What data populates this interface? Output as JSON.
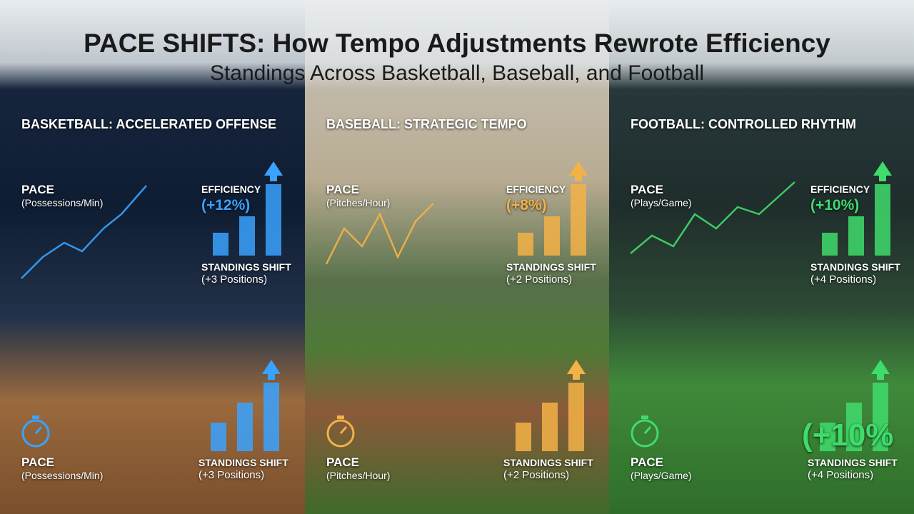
{
  "header": {
    "title": "PACE SHIFTS: How Tempo Adjustments Rewrote Efficiency",
    "subtitle": "Standings Across Basketball, Baseball, and Football"
  },
  "panels": [
    {
      "heading": "BASKETBALL: ACCELERATED OFFENSE",
      "pace_label": "PACE",
      "pace_unit": "(Possessions/Min)",
      "efficiency_label": "EFFICIENCY",
      "efficiency_value": "(+12%)",
      "standings_label": "STANDINGS SHIFT",
      "standings_value": "(+3 Positions)",
      "footer_pace_label": "PACE",
      "footer_pace_unit": "(Possessions/Min)",
      "footer_standings_label": "STANDINGS SHIFT",
      "footer_standings_value": "(+3 Positions)"
    },
    {
      "heading": "BASEBALL: STRATEGIC TEMPO",
      "pace_label": "PACE",
      "pace_unit": "(Pitches/Hour)",
      "efficiency_label": "EFFICIENCY",
      "efficiency_value": "(+8%)",
      "standings_label": "STANDINGS SHIFT",
      "standings_value": "(+2 Positions)",
      "footer_pace_label": "PACE",
      "footer_pace_unit": "(Pitches/Hour)",
      "footer_standings_label": "STANDINGS SHIFT",
      "footer_standings_value": "(+2 Positions)"
    },
    {
      "heading": "FOOTBALL: CONTROLLED RHYTHM",
      "pace_label": "PACE",
      "pace_unit": "(Plays/Game)",
      "efficiency_label": "EFFICIENCY",
      "efficiency_value": "(+10%)",
      "standings_label": "STANDINGS SHIFT",
      "standings_value": "(+4 Positions)",
      "footer_efficiency_value": "(+10%",
      "footer_pace_label": "PACE",
      "footer_pace_unit": "(Plays/Game)",
      "footer_standings_label": "STANDINGS SHIFT",
      "footer_standings_value": "(+4 Positions)"
    }
  ]
}
